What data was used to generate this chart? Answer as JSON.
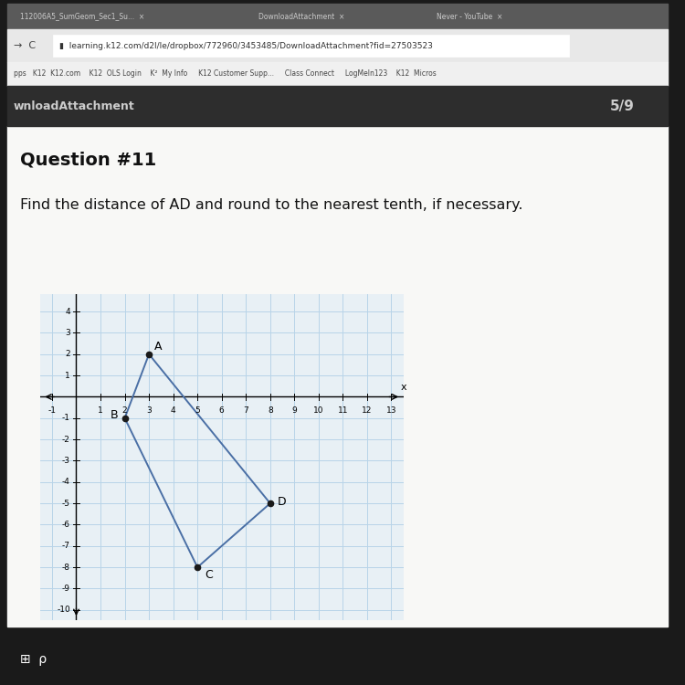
{
  "question_number": "Question #11",
  "question_text": "Find the distance of AD and round to the nearest tenth, if necessary.",
  "points": {
    "A": [
      3,
      2
    ],
    "B": [
      2,
      -1
    ],
    "C": [
      5,
      -8
    ],
    "D": [
      8,
      -5
    ]
  },
  "polygon_order": [
    "A",
    "B",
    "C",
    "D"
  ],
  "xlim": [
    -1.5,
    13.5
  ],
  "ylim": [
    -10.5,
    4.8
  ],
  "grid_color": "#b8d4e8",
  "axis_color": "#000000",
  "polygon_color": "#4a6fa5",
  "point_color": "#1a1a1a",
  "label_fontsize": 9,
  "page_indicator": "5/9",
  "browser_url": "learning.k12.com/d2l/le/dropbox/772960/3453485/DownloadAttachment?fid=27503523",
  "bookmarks": "pps   K12  K12.com    K12  OLS Login    K²  My Info     K12 Customer Supp...     Class Connect     LogMeIn123    K12  Micros",
  "nav_label": "wnloadAttachment",
  "browser_bg": "#3a3a3a",
  "url_bar_bg": "#ffffff",
  "content_bg": "#f0f0ee",
  "plot_bg": "#e8f0f5",
  "laptop_bg": "#1a1a1a",
  "taskbar_bg": "#1e3a5f"
}
